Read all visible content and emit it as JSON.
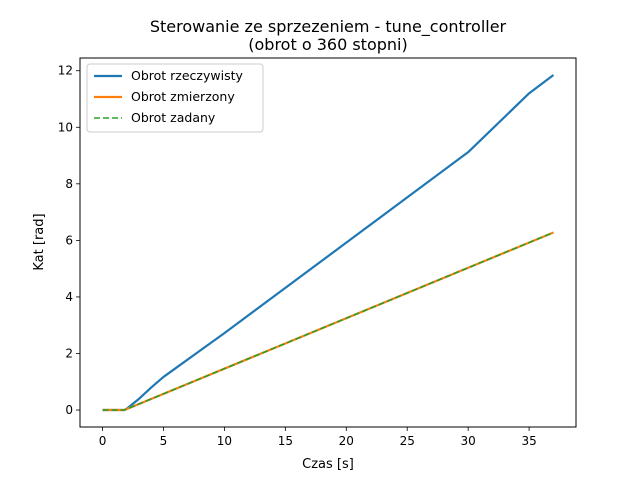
{
  "chart_data": {
    "type": "line",
    "title": "Sterowanie ze sprzezeniem - tune_controller",
    "subtitle": "(obrot o 360 stopni)",
    "xlabel": "Czas [s]",
    "ylabel": "Kat [rad]",
    "xlim": [
      -1.85,
      38.85
    ],
    "ylim": [
      -0.6,
      12.45
    ],
    "xticks": [
      0,
      5,
      10,
      15,
      20,
      25,
      30,
      35
    ],
    "yticks": [
      0,
      2,
      4,
      6,
      8,
      10,
      12
    ],
    "grid": false,
    "legend_position": "top-left",
    "series": [
      {
        "name": "Obrot rzeczywisty",
        "color": "#1f77b4",
        "style": "solid",
        "x": [
          0,
          1.8,
          2.0,
          3.0,
          4.0,
          5.0,
          6.0,
          8.0,
          10.0,
          15.0,
          20.0,
          25.0,
          30.0,
          35.0,
          37.0
        ],
        "y": [
          0,
          0,
          0.05,
          0.4,
          0.8,
          1.17,
          1.48,
          2.1,
          2.72,
          4.32,
          5.92,
          7.52,
          9.12,
          11.2,
          11.85
        ]
      },
      {
        "name": "Obrot zmierzony",
        "color": "#ff7f0e",
        "style": "solid",
        "x": [
          0,
          1.8,
          37.0
        ],
        "y": [
          0,
          0,
          6.28
        ]
      },
      {
        "name": "Obrot zadany",
        "color": "#2ca02c",
        "style": "dashed",
        "x": [
          0,
          1.8,
          37.0
        ],
        "y": [
          0,
          0,
          6.28
        ]
      }
    ]
  }
}
